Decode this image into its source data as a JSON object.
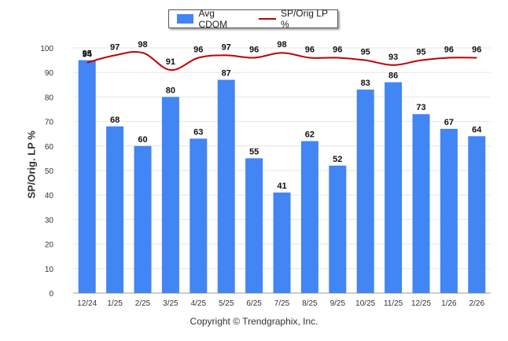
{
  "chart_data": {
    "type": "bar",
    "title": "",
    "xlabel": "",
    "ylabel": "SP/Orig. LP %",
    "ylim": [
      0,
      100
    ],
    "yticks": [
      0,
      10,
      20,
      30,
      40,
      50,
      60,
      70,
      80,
      90,
      100
    ],
    "categories": [
      "12/24",
      "1/25",
      "2/25",
      "3/25",
      "4/25",
      "5/25",
      "6/25",
      "7/25",
      "8/25",
      "9/25",
      "10/25",
      "11/25",
      "12/25",
      "1/26",
      "2/26"
    ],
    "series": [
      {
        "name": "Avg CDOM",
        "type": "bar",
        "color": "#4285f4",
        "values": [
          95,
          68,
          60,
          80,
          63,
          87,
          55,
          41,
          62,
          52,
          83,
          86,
          73,
          67,
          64
        ]
      },
      {
        "name": "SP/Orig LP %",
        "type": "line",
        "color": "#c00000",
        "values": [
          94,
          97,
          98,
          91,
          96,
          97,
          96,
          98,
          96,
          96,
          95,
          93,
          95,
          96,
          96
        ]
      }
    ],
    "legend_position": "top-center",
    "grid": true
  },
  "footer": {
    "copyright": "Copyright © Trendgraphix, Inc."
  }
}
